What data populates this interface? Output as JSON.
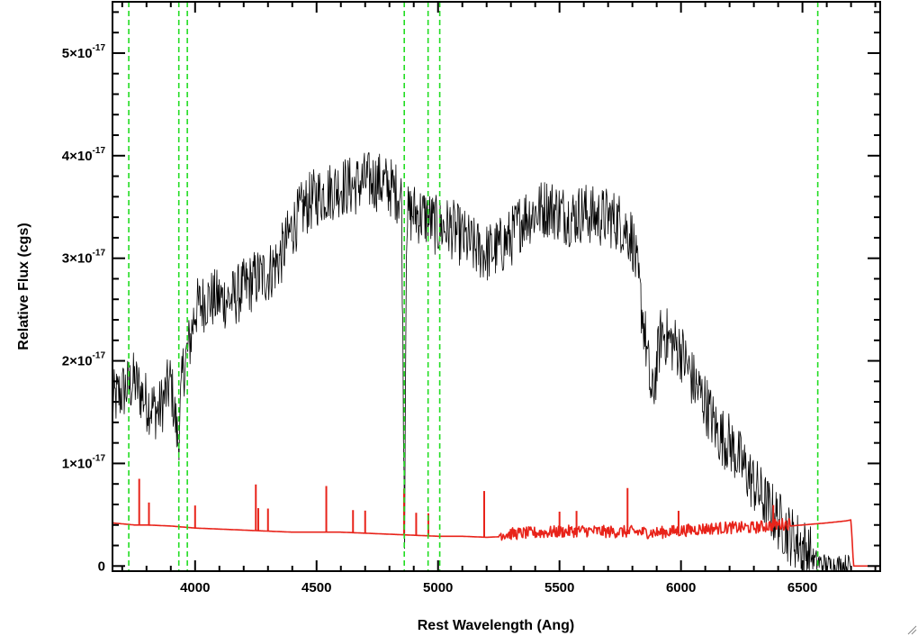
{
  "chart_data": {
    "type": "line",
    "title": "",
    "xlabel": "Rest Wavelength (Ang)",
    "ylabel": "Relative Flux (cgs)",
    "xlim": [
      3660,
      6820
    ],
    "ylim": [
      -5e-19,
      5.5e-17
    ],
    "x_ticks": [
      {
        "value": 4000,
        "label": "4000"
      },
      {
        "value": 4500,
        "label": "4500"
      },
      {
        "value": 5000,
        "label": "5000"
      },
      {
        "value": 5500,
        "label": "5500"
      },
      {
        "value": 6000,
        "label": "6000"
      },
      {
        "value": 6500,
        "label": "6500"
      }
    ],
    "y_ticks": [
      {
        "value": 0,
        "mantissa": "0",
        "exponent": ""
      },
      {
        "value": 1e-17,
        "mantissa": "1×10",
        "exponent": "-17"
      },
      {
        "value": 2e-17,
        "mantissa": "2×10",
        "exponent": "-17"
      },
      {
        "value": 3e-17,
        "mantissa": "3×10",
        "exponent": "-17"
      },
      {
        "value": 4e-17,
        "mantissa": "4×10",
        "exponent": "-17"
      },
      {
        "value": 5e-17,
        "mantissa": "5×10",
        "exponent": "-17"
      }
    ],
    "grid": false,
    "series": [
      {
        "color": "#000000",
        "x": [
          3660,
          3700,
          3750,
          3800,
          3850,
          3900,
          3930,
          3950,
          3980,
          4000,
          4050,
          4100,
          4150,
          4200,
          4250,
          4300,
          4350,
          4400,
          4450,
          4500,
          4550,
          4600,
          4650,
          4700,
          4750,
          4800,
          4850,
          4862,
          4870,
          4900,
          4950,
          5000,
          5050,
          5100,
          5150,
          5200,
          5250,
          5300,
          5350,
          5400,
          5450,
          5500,
          5550,
          5600,
          5650,
          5700,
          5750,
          5800,
          5850,
          5880,
          5920,
          5950,
          6000,
          6050,
          6100,
          6150,
          6200,
          6250,
          6300,
          6350,
          6400,
          6450,
          6500,
          6550,
          6600,
          6650,
          6700
        ],
        "y": [
          1.6e-17,
          1.7e-17,
          1.8e-17,
          1.6e-17,
          1.5e-17,
          1.8e-17,
          1.2e-17,
          1.9e-17,
          2.2e-17,
          2.5e-17,
          2.6e-17,
          2.6e-17,
          2.6e-17,
          2.7e-17,
          2.8e-17,
          2.85e-17,
          3e-17,
          3.3e-17,
          3.5e-17,
          3.6e-17,
          3.65e-17,
          3.7e-17,
          3.7e-17,
          3.75e-17,
          3.75e-17,
          3.7e-17,
          3.6e-17,
          3e-18,
          3.4e-17,
          3.45e-17,
          3.4e-17,
          3.3e-17,
          3.3e-17,
          3.2e-17,
          3.1e-17,
          3.05e-17,
          3.1e-17,
          3.2e-17,
          3.4e-17,
          3.45e-17,
          3.5e-17,
          3.45e-17,
          3.4e-17,
          3.45e-17,
          3.4e-17,
          3.4e-17,
          3.35e-17,
          3.2e-17,
          2.3e-17,
          1.6e-17,
          2.3e-17,
          2.2e-17,
          2.1e-17,
          1.8e-17,
          1.6e-17,
          1.3e-17,
          1.2e-17,
          1e-17,
          8e-18,
          6e-18,
          4.5e-18,
          3e-18,
          2e-18,
          5e-19,
          0.0,
          0.0,
          0.0
        ]
      },
      {
        "color": "#e8231a",
        "x": [
          3660,
          3750,
          3800,
          3900,
          4000,
          4100,
          4200,
          4300,
          4400,
          4500,
          4600,
          4700,
          4800,
          4900,
          5000,
          5100,
          5200,
          5300,
          5400,
          5500,
          5600,
          5700,
          5800,
          5900,
          6000,
          6100,
          6200,
          6300,
          6400,
          6500,
          6600,
          6680,
          6700,
          6710,
          6820
        ],
        "y": [
          4.2e-18,
          4e-18,
          4e-18,
          3.9e-18,
          3.7e-18,
          3.6e-18,
          3.5e-18,
          3.4e-18,
          3.3e-18,
          3.3e-18,
          3.3e-18,
          3.2e-18,
          3.1e-18,
          3e-18,
          2.9e-18,
          2.9e-18,
          2.8e-18,
          2.9e-18,
          3e-18,
          3.1e-18,
          3.2e-18,
          3.1e-18,
          3.1e-18,
          3e-18,
          3.2e-18,
          3.4e-18,
          3.5e-18,
          3.5e-18,
          3.8e-18,
          4e-18,
          4.2e-18,
          4.4e-18,
          4.5e-18,
          0.0,
          0.0
        ]
      }
    ],
    "emission_spikes": [
      3770,
      3810,
      4000,
      4250,
      4260,
      4300,
      4540,
      4650,
      4700,
      4860,
      4910,
      4960,
      5190,
      5500,
      5570,
      5780,
      5990,
      6380
    ],
    "vertical_lines": [
      {
        "x": 3727,
        "color": "#22dd22",
        "style": "dashed"
      },
      {
        "x": 3933,
        "color": "#22dd22",
        "style": "dashed"
      },
      {
        "x": 3968,
        "color": "#22dd22",
        "style": "dashed"
      },
      {
        "x": 4861,
        "color": "#22dd22",
        "style": "dashed"
      },
      {
        "x": 4959,
        "color": "#22dd22",
        "style": "dashed"
      },
      {
        "x": 5007,
        "color": "#22dd22",
        "style": "dashed"
      },
      {
        "x": 6563,
        "color": "#22dd22",
        "style": "dashed"
      }
    ]
  }
}
